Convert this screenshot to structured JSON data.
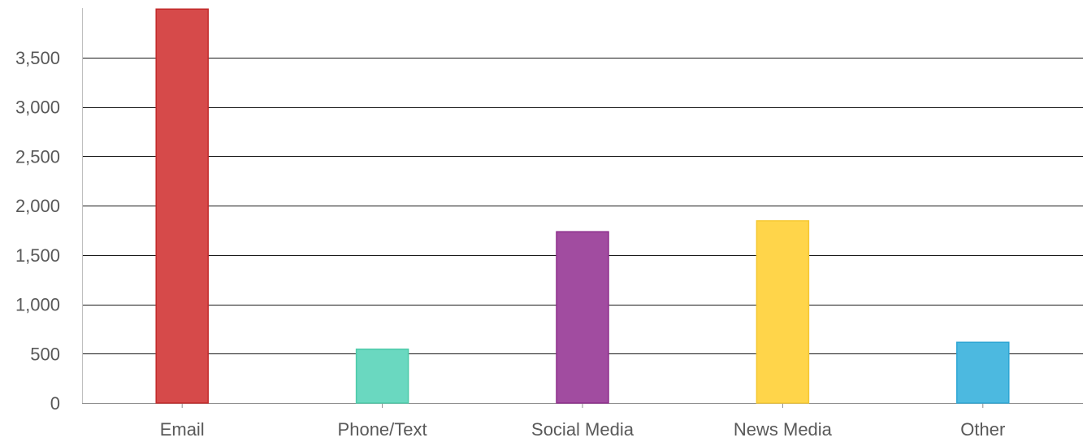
{
  "chart_data": {
    "type": "bar",
    "title": "",
    "xlabel": "",
    "ylabel": "",
    "categories": [
      "Email",
      "Phone/Text",
      "Social Media",
      "News Media",
      "Other"
    ],
    "values": [
      3990,
      545,
      1735,
      1845,
      615
    ],
    "colors": [
      "#d64a4a",
      "#6ad8c0",
      "#a14ca0",
      "#ffd54a",
      "#4cb9e0"
    ],
    "border_colors": [
      "#c22a2a",
      "#4ccaa8",
      "#8e2f8c",
      "#f5c832",
      "#2ea6d4"
    ],
    "ylim": [
      0,
      4000
    ],
    "yticks": [
      0,
      500,
      1000,
      1500,
      2000,
      2500,
      3000,
      3500
    ],
    "ytick_labels": [
      "0",
      "500",
      "1,000",
      "1,500",
      "2,000",
      "2,500",
      "3,000",
      "3,500"
    ],
    "grid": true,
    "legend": "none"
  }
}
